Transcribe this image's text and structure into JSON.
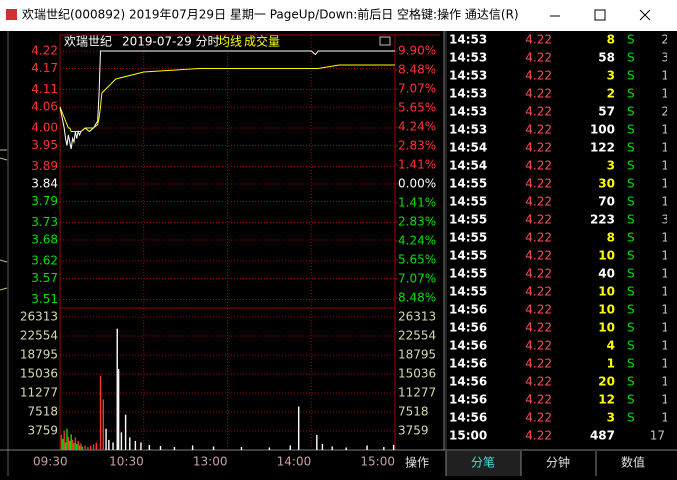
{
  "window": {
    "title": "欢瑞世纪(000892) 2019年07月29日 星期一 PageUp/Down:前后日 空格键:操作 通达信(R)"
  },
  "chart_data": [
    {
      "type": "line",
      "title": "欢瑞世纪",
      "subtitle": "2019-07-29 分时",
      "x": [
        0,
        1,
        2,
        3,
        4,
        5,
        6,
        7,
        8,
        9,
        10,
        11,
        12,
        13,
        14,
        15,
        18,
        21,
        24,
        27,
        28,
        29,
        30,
        40,
        60,
        100,
        150,
        180,
        183,
        185,
        200,
        240
      ],
      "xlim": [
        0,
        240
      ],
      "xticks": [
        {
          "value": 0,
          "label": "09:30"
        },
        {
          "value": 60,
          "label": "10:30"
        },
        {
          "value": 120,
          "label": "13:00"
        },
        {
          "value": 180,
          "label": "14:00"
        },
        {
          "value": 240,
          "label": "15:00"
        }
      ],
      "ylim": [
        3.46,
        4.22
      ],
      "yticks": [
        4.22,
        4.17,
        4.11,
        4.06,
        {
          "value": 4,
          "label": "4.00"
        },
        3.95,
        3.89,
        3.84,
        3.79,
        3.73,
        3.68,
        3.62,
        3.57,
        3.51
      ],
      "y2lim": [
        -9.9,
        9.9
      ],
      "y2ticks": [
        {
          "value": 9.9,
          "label": "9.90%"
        },
        {
          "value": 8.48,
          "label": "8.48%"
        },
        {
          "value": 7.07,
          "label": "7.07%"
        },
        {
          "value": 5.65,
          "label": "5.65%"
        },
        {
          "value": 4.24,
          "label": "4.24%"
        },
        {
          "value": 2.83,
          "label": "2.83%"
        },
        {
          "value": 1.41,
          "label": "1.41%"
        },
        {
          "value": 0,
          "label": "0.00%"
        },
        {
          "value": -1.41,
          "label": "1.41%"
        },
        {
          "value": -2.83,
          "label": "2.83%"
        },
        {
          "value": -4.24,
          "label": "4.24%"
        },
        {
          "value": -5.65,
          "label": "5.65%"
        },
        {
          "value": -7.07,
          "label": "7.07%"
        },
        {
          "value": -8.48,
          "label": "8.48%"
        }
      ],
      "series": [
        {
          "color": "#ffffff",
          "values": [
            4.06,
            4.04,
            4.02,
            4.0,
            3.97,
            3.95,
            3.98,
            3.96,
            3.94,
            3.97,
            3.96,
            3.99,
            3.97,
            3.99,
            3.98,
            3.99,
            4.0,
            3.99,
            4.0,
            4.02,
            4.1,
            4.22,
            4.22,
            4.22,
            4.22,
            4.22,
            4.22,
            4.22,
            4.21,
            4.22,
            4.22,
            4.22
          ]
        },
        {
          "name": "均线",
          "color": "#ffff00",
          "values": [
            4.06,
            4.05,
            4.04,
            4.03,
            4.02,
            4.01,
            4.0,
            4.0,
            3.99,
            3.99,
            3.99,
            3.99,
            3.99,
            3.99,
            3.99,
            3.99,
            4.0,
            4.0,
            4.0,
            4.01,
            4.03,
            4.06,
            4.1,
            4.14,
            4.16,
            4.17,
            4.17,
            4.17,
            4.17,
            4.17,
            4.18,
            4.18
          ]
        }
      ]
    },
    {
      "type": "bar",
      "title": "成交量",
      "x": [
        1,
        2,
        3,
        4,
        5,
        6,
        7,
        8,
        9,
        10,
        11,
        12,
        13,
        14,
        15,
        16,
        18,
        20,
        22,
        24,
        26,
        29,
        31,
        33,
        35,
        38,
        41,
        42,
        44,
        47,
        50,
        54,
        58,
        64,
        72,
        82,
        95,
        110,
        130,
        150,
        165,
        171,
        184,
        188,
        195,
        205,
        220,
        232,
        239
      ],
      "values": [
        3000,
        2200,
        3800,
        1500,
        4200,
        2600,
        1800,
        3100,
        2000,
        1400,
        2500,
        1200,
        1800,
        900,
        1300,
        700,
        900,
        600,
        800,
        1100,
        1500,
        14700,
        10000,
        4200,
        2000,
        1500,
        24000,
        16000,
        3500,
        7000,
        2500,
        1800,
        1500,
        1000,
        800,
        600,
        900,
        700,
        600,
        500,
        900,
        8600,
        3000,
        1200,
        700,
        500,
        900,
        600,
        1000
      ],
      "colors": [
        "#ff3232",
        "#00e000",
        "#ff3232",
        "#00e000",
        "#00e000",
        "#ff3232",
        "#00e000",
        "#00e000",
        "#ff3232",
        "#00e000",
        "#ff3232",
        "#00e000",
        "#ff3232",
        "#00e000",
        "#ff3232",
        "#00e000",
        "#ff3232",
        "#ff3232",
        "#ff3232",
        "#ff3232",
        "#ff3232",
        "#ff3232",
        "#ff3232",
        "#ffffff",
        "#ffffff",
        "#ffffff",
        "#ffffff",
        "#ffffff",
        "#ffffff",
        "#ffffff",
        "#ffffff",
        "#ffffff",
        "#ffffff",
        "#ffffff",
        "#ffffff",
        "#ffffff",
        "#ffffff",
        "#ffffff",
        "#ffffff",
        "#ffffff",
        "#ffffff",
        "#ffffff",
        "#ffffff",
        "#ffffff",
        "#ffffff",
        "#ffffff",
        "#ffffff",
        "#ffffff",
        "#ffffff"
      ],
      "xlim": [
        0,
        240
      ],
      "ylim": [
        0,
        26313
      ],
      "yticks": [
        26313,
        22554,
        18795,
        15036,
        11277,
        7518,
        3759
      ]
    }
  ],
  "table": {
    "rows": [
      {
        "time": "14:53",
        "price": "4.22",
        "volume": "8",
        "side": "S",
        "count": "2",
        "volume_color": "#ffff00"
      },
      {
        "time": "14:53",
        "price": "4.22",
        "volume": "58",
        "side": "S",
        "count": "3",
        "volume_color": "#ffffff"
      },
      {
        "time": "14:53",
        "price": "4.22",
        "volume": "3",
        "side": "S",
        "count": "1",
        "volume_color": "#ffff00"
      },
      {
        "time": "14:53",
        "price": "4.22",
        "volume": "2",
        "side": "S",
        "count": "1",
        "volume_color": "#ffff00"
      },
      {
        "time": "14:53",
        "price": "4.22",
        "volume": "57",
        "side": "S",
        "count": "2",
        "volume_color": "#ffffff"
      },
      {
        "time": "14:53",
        "price": "4.22",
        "volume": "100",
        "side": "S",
        "count": "1",
        "volume_color": "#ffffff"
      },
      {
        "time": "14:54",
        "price": "4.22",
        "volume": "122",
        "side": "S",
        "count": "1",
        "volume_color": "#ffffff"
      },
      {
        "time": "14:54",
        "price": "4.22",
        "volume": "3",
        "side": "S",
        "count": "1",
        "volume_color": "#ffff00"
      },
      {
        "time": "14:55",
        "price": "4.22",
        "volume": "30",
        "side": "S",
        "count": "1",
        "volume_color": "#ffff00"
      },
      {
        "time": "14:55",
        "price": "4.22",
        "volume": "70",
        "side": "S",
        "count": "1",
        "volume_color": "#ffffff"
      },
      {
        "time": "14:55",
        "price": "4.22",
        "volume": "223",
        "side": "S",
        "count": "3",
        "volume_color": "#ffffff"
      },
      {
        "time": "14:55",
        "price": "4.22",
        "volume": "8",
        "side": "S",
        "count": "1",
        "volume_color": "#ffff00"
      },
      {
        "time": "14:55",
        "price": "4.22",
        "volume": "10",
        "side": "S",
        "count": "1",
        "volume_color": "#ffff00"
      },
      {
        "time": "14:55",
        "price": "4.22",
        "volume": "40",
        "side": "S",
        "count": "1",
        "volume_color": "#ffffff"
      },
      {
        "time": "14:55",
        "price": "4.22",
        "volume": "10",
        "side": "S",
        "count": "1",
        "volume_color": "#ffff00"
      },
      {
        "time": "14:56",
        "price": "4.22",
        "volume": "10",
        "side": "S",
        "count": "1",
        "volume_color": "#ffff00"
      },
      {
        "time": "14:56",
        "price": "4.22",
        "volume": "10",
        "side": "S",
        "count": "1",
        "volume_color": "#ffff00"
      },
      {
        "time": "14:56",
        "price": "4.22",
        "volume": "4",
        "side": "S",
        "count": "1",
        "volume_color": "#ffff00"
      },
      {
        "time": "14:56",
        "price": "4.22",
        "volume": "1",
        "side": "S",
        "count": "1",
        "volume_color": "#ffff00"
      },
      {
        "time": "14:56",
        "price": "4.22",
        "volume": "20",
        "side": "S",
        "count": "1",
        "volume_color": "#ffff00"
      },
      {
        "time": "14:56",
        "price": "4.22",
        "volume": "12",
        "side": "S",
        "count": "1",
        "volume_color": "#ffff00"
      },
      {
        "time": "14:56",
        "price": "4.22",
        "volume": "3",
        "side": "S",
        "count": "1",
        "volume_color": "#ffff00"
      },
      {
        "time": "15:00",
        "price": "4.22",
        "volume": "487",
        "count": "17",
        "volume_color": "#ffffff"
      }
    ]
  },
  "tabs": [
    "操作",
    "分笔",
    "分钟",
    "数值"
  ]
}
